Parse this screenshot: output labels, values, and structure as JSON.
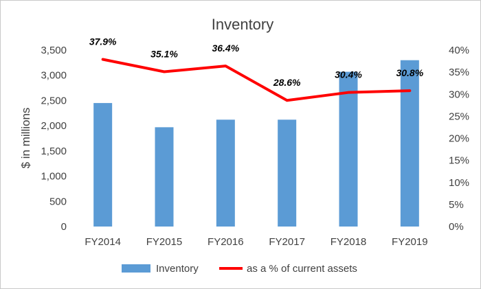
{
  "chart_data": {
    "type": "bar+line",
    "title": "Inventory",
    "ylabel": "$ in millions",
    "y2label": "",
    "categories": [
      "FY2014",
      "FY2015",
      "FY2016",
      "FY2017",
      "FY2018",
      "FY2019"
    ],
    "series": [
      {
        "name": "Inventory",
        "type": "bar",
        "axis": "left",
        "color": "#5b9bd5",
        "values": [
          2450,
          1970,
          2120,
          2120,
          3070,
          3300
        ]
      },
      {
        "name": "as a % of current assets",
        "type": "line",
        "axis": "right",
        "color": "#ff0000",
        "values": [
          37.9,
          35.1,
          36.4,
          28.6,
          30.4,
          30.8
        ],
        "labels": [
          "37.9%",
          "35.1%",
          "36.4%",
          "28.6%",
          "30.4%",
          "30.8%"
        ]
      }
    ],
    "ylim": [
      0,
      3500
    ],
    "y2lim": [
      0,
      40
    ],
    "yticks": [
      "0",
      "500",
      "1,000",
      "1,500",
      "2,000",
      "2,500",
      "3,000",
      "3,500"
    ],
    "y2ticks": [
      "0%",
      "5%",
      "10%",
      "15%",
      "20%",
      "25%",
      "30%",
      "35%",
      "40%"
    ],
    "grid": false,
    "legend_position": "bottom"
  }
}
